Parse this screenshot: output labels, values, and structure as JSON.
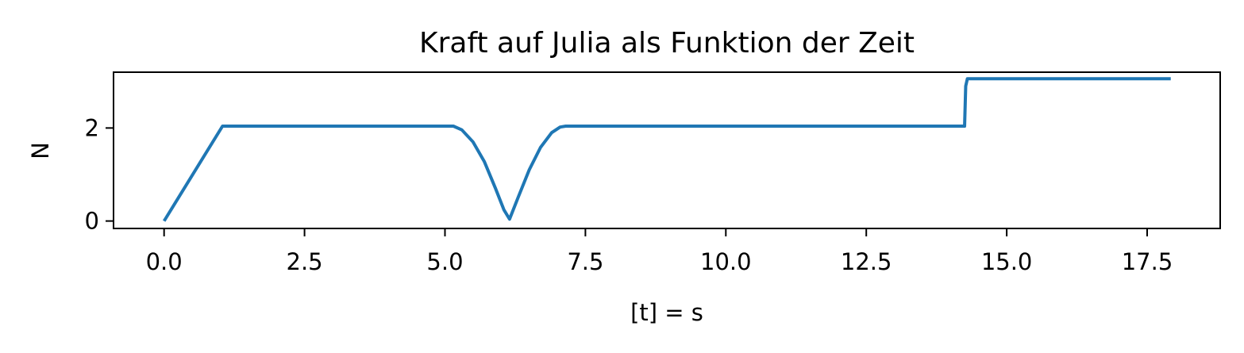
{
  "chart_data": {
    "type": "line",
    "title": "Kraft auf Julia als Funktion der Zeit",
    "xlabel": "[t] = s",
    "ylabel": "N",
    "xlim": [
      -0.9,
      18.8
    ],
    "ylim": [
      -0.16,
      3.2
    ],
    "xticks": [
      0.0,
      2.5,
      5.0,
      7.5,
      10.0,
      12.5,
      15.0,
      17.5
    ],
    "xtick_labels": [
      "0.0",
      "2.5",
      "5.0",
      "7.5",
      "10.0",
      "12.5",
      "15.0",
      "17.5"
    ],
    "yticks": [
      0,
      2
    ],
    "ytick_labels": [
      "0",
      "2"
    ],
    "grid": false,
    "color": "#1f77b4",
    "series": [
      {
        "x": [
          0.0,
          1.04,
          5.15,
          5.3,
          5.5,
          5.7,
          5.9,
          6.05,
          6.15,
          6.3,
          6.5,
          6.7,
          6.9,
          7.05,
          7.15,
          14.25,
          14.27,
          14.3,
          17.92
        ],
        "y": [
          0.0,
          2.04,
          2.04,
          1.96,
          1.7,
          1.28,
          0.7,
          0.24,
          0.04,
          0.5,
          1.1,
          1.58,
          1.9,
          2.02,
          2.04,
          2.04,
          2.9,
          3.06,
          3.06
        ]
      }
    ]
  }
}
